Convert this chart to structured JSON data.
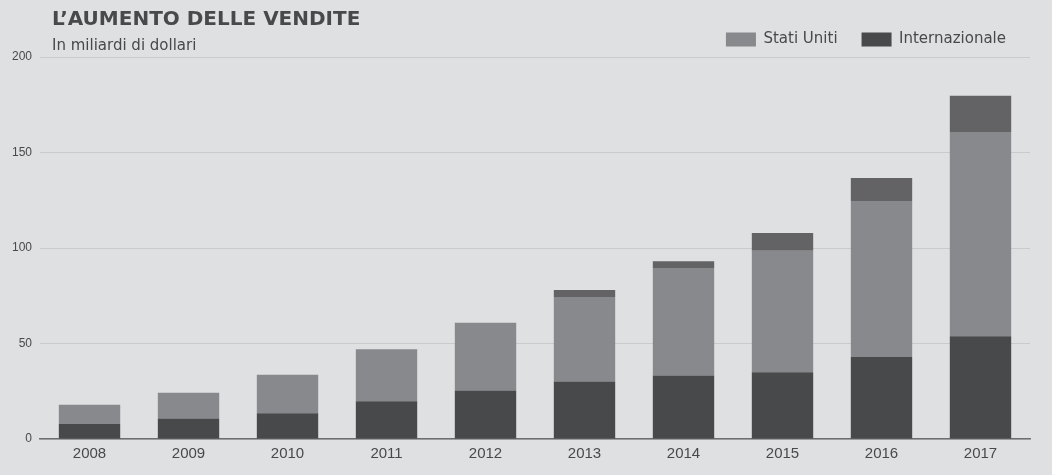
{
  "chart_data": {
    "type": "bar",
    "title": "L’AUMENTO DELLE VENDITE",
    "subtitle": "In miliardi di dollari",
    "categories": [
      "2008",
      "2009",
      "2010",
      "2011",
      "2012",
      "2013",
      "2014",
      "2015",
      "2016",
      "2017"
    ],
    "stacked": true,
    "series": [
      {
        "name": "Internazionale",
        "color": "#48494b",
        "values": [
          7.9,
          10.7,
          13.5,
          19.7,
          25.4,
          30.1,
          33.3,
          35.0,
          42.9,
          53.8
        ]
      },
      {
        "name": "Stati Uniti",
        "color": "#88898d",
        "values": [
          10.0,
          13.5,
          20.1,
          27.3,
          35.5,
          44.3,
          56.2,
          63.5,
          81.7,
          106.9
        ]
      },
      {
        "color": "#636365",
        "values": [
          null,
          null,
          null,
          null,
          null,
          3.6,
          3.5,
          9.4,
          12.1,
          19.0
        ]
      }
    ],
    "ylim": [
      0,
      200
    ],
    "yticks": [
      0,
      50,
      100,
      150,
      200
    ],
    "grid": "y",
    "legend": "top right"
  }
}
